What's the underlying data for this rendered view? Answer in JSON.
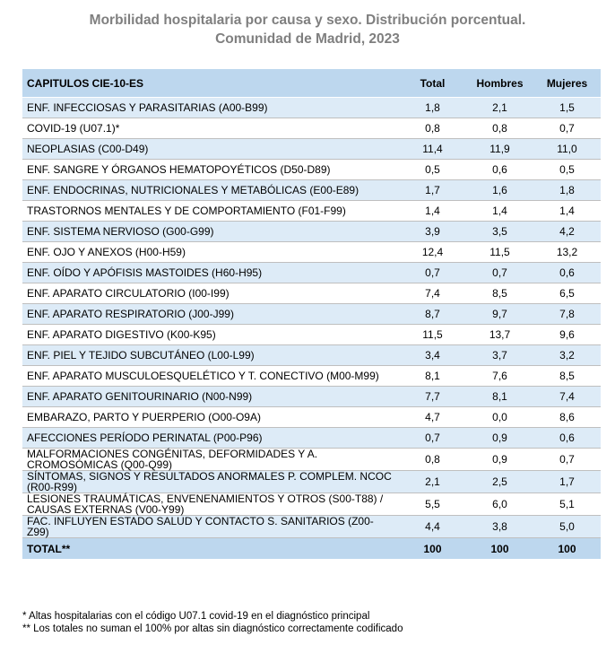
{
  "title": {
    "line1": "Morbilidad hospitalaria por causa y sexo. Distribución porcentual.",
    "line2": "Comunidad de Madrid, 2023"
  },
  "table": {
    "headers": [
      "CAPITULOS CIE-10-ES",
      "Total",
      "Hombres",
      "Mujeres"
    ],
    "rows": [
      {
        "label": "ENF. INFECCIOSAS Y PARASITARIAS (A00-B99)",
        "total": "1,8",
        "hombres": "2,1",
        "mujeres": "1,5"
      },
      {
        "label": "COVID-19 (U07.1)*",
        "total": "0,8",
        "hombres": "0,8",
        "mujeres": "0,7"
      },
      {
        "label": "NEOPLASIAS (C00-D49)",
        "total": "11,4",
        "hombres": "11,9",
        "mujeres": "11,0"
      },
      {
        "label": "ENF. SANGRE Y ÓRGANOS HEMATOPOYÉTICOS (D50-D89)",
        "total": "0,5",
        "hombres": "0,6",
        "mujeres": "0,5"
      },
      {
        "label": "ENF. ENDOCRINAS, NUTRICIONALES Y METABÓLICAS (E00-E89)",
        "total": "1,7",
        "hombres": "1,6",
        "mujeres": "1,8"
      },
      {
        "label": "TRASTORNOS MENTALES Y DE COMPORTAMIENTO (F01-F99)",
        "total": "1,4",
        "hombres": "1,4",
        "mujeres": "1,4"
      },
      {
        "label": "ENF. SISTEMA NERVIOSO (G00-G99)",
        "total": "3,9",
        "hombres": "3,5",
        "mujeres": "4,2"
      },
      {
        "label": "ENF. OJO Y ANEXOS (H00-H59)",
        "total": "12,4",
        "hombres": "11,5",
        "mujeres": "13,2"
      },
      {
        "label": "ENF. OÍDO Y APÓFISIS MASTOIDES (H60-H95)",
        "total": "0,7",
        "hombres": "0,7",
        "mujeres": "0,6"
      },
      {
        "label": "ENF. APARATO CIRCULATORIO (I00-I99)",
        "total": "7,4",
        "hombres": "8,5",
        "mujeres": "6,5"
      },
      {
        "label": "ENF. APARATO RESPIRATORIO (J00-J99)",
        "total": "8,7",
        "hombres": "9,7",
        "mujeres": "7,8"
      },
      {
        "label": "ENF. APARATO DIGESTIVO (K00-K95)",
        "total": "11,5",
        "hombres": "13,7",
        "mujeres": "9,6"
      },
      {
        "label": "ENF. PIEL Y TEJIDO SUBCUTÁNEO (L00-L99)",
        "total": "3,4",
        "hombres": "3,7",
        "mujeres": "3,2"
      },
      {
        "label": "ENF. APARATO MUSCULOESQUELÉTICO Y T. CONECTIVO (M00-M99)",
        "total": "8,1",
        "hombres": "7,6",
        "mujeres": "8,5"
      },
      {
        "label": "ENF. APARATO GENITOURINARIO (N00-N99)",
        "total": "7,7",
        "hombres": "8,1",
        "mujeres": "7,4"
      },
      {
        "label": "EMBARAZO, PARTO Y PUERPERIO (O00-O9A)",
        "total": "4,7",
        "hombres": "0,0",
        "mujeres": "8,6"
      },
      {
        "label": "AFECCIONES PERÍODO PERINATAL (P00-P96)",
        "total": "0,7",
        "hombres": "0,9",
        "mujeres": "0,6"
      },
      {
        "label": "MALFORMACIONES CONGÉNITAS, DEFORMIDADES Y A. CROMOSÓMICAS (Q00-Q99)",
        "total": "0,8",
        "hombres": "0,9",
        "mujeres": "0,7"
      },
      {
        "label": "SÍNTOMAS, SIGNOS Y RESULTADOS ANORMALES P. COMPLEM. NCOC (R00-R99)",
        "total": "2,1",
        "hombres": "2,5",
        "mujeres": "1,7"
      },
      {
        "label": "LESIONES TRAUMÁTICAS, ENVENENAMIENTOS Y OTROS (S00-T88) / CAUSAS EXTERNAS (V00-Y99)",
        "total": "5,5",
        "hombres": "6,0",
        "mujeres": "5,1"
      },
      {
        "label": "FAC. INFLUYEN ESTADO SALUD Y CONTACTO S. SANITARIOS (Z00-Z99)",
        "total": "4,4",
        "hombres": "3,8",
        "mujeres": "5,0"
      }
    ],
    "total_row": {
      "label": "TOTAL**",
      "total": "100",
      "hombres": "100",
      "mujeres": "100"
    }
  },
  "notes": [
    "* Altas hospitalarias con el código U07.1 covid-19 en el diagnóstico principal",
    "** Los totales no suman el 100% por altas sin diagnóstico correctamente codificado"
  ],
  "colors": {
    "header_bg": "#bdd7ee",
    "shaded_row": "#ddebf7",
    "title": "#7f7f7f"
  }
}
